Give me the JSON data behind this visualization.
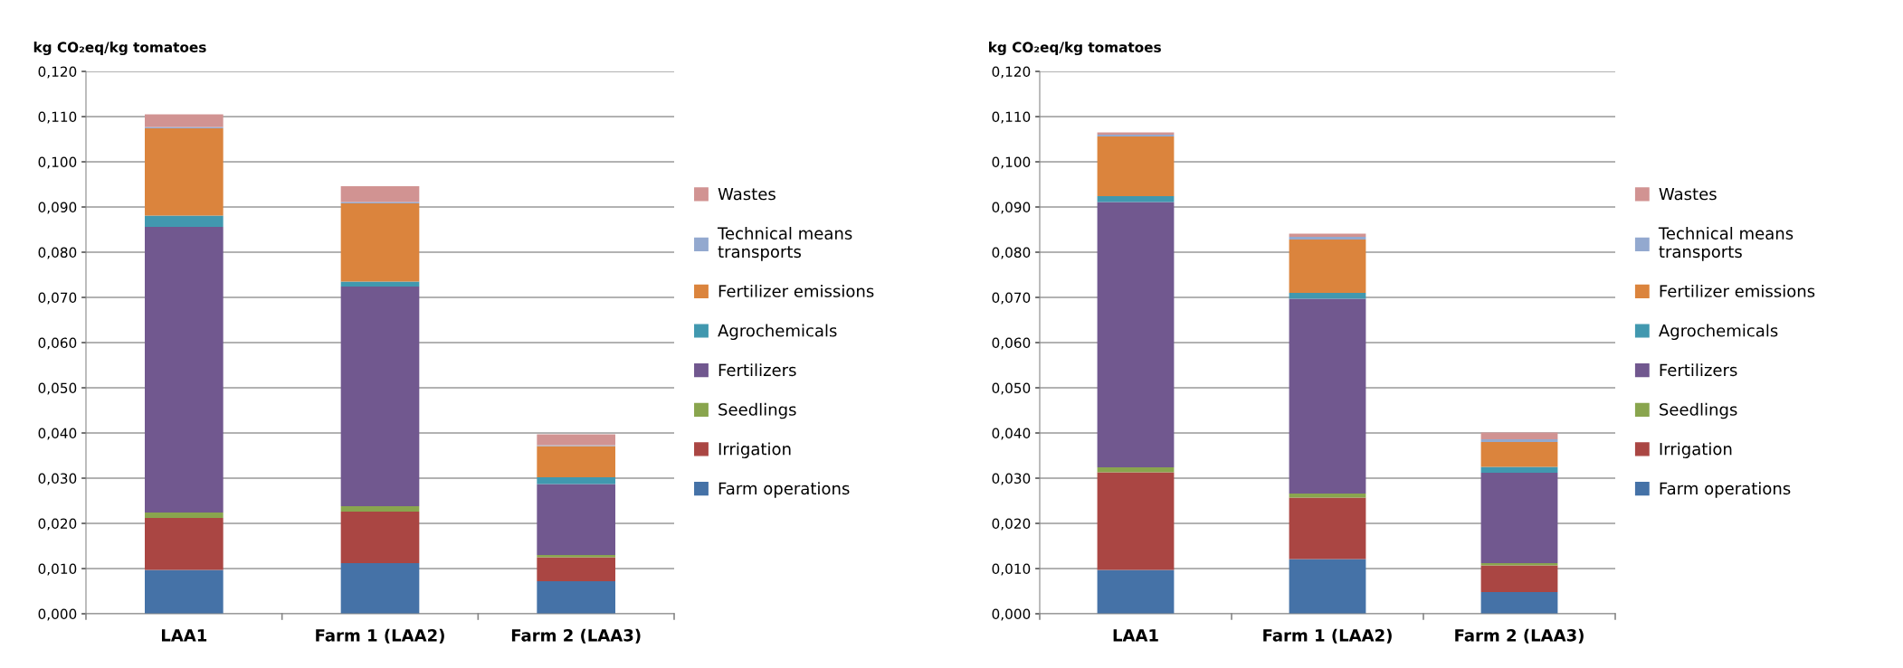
{
  "chart_data": [
    {
      "type": "bar",
      "stacked": true,
      "ylabel": "kg CO₂eq/kg tomatoes",
      "categories": [
        "LAA1",
        "Farm 1 (LAA2)",
        "Farm 2 (LAA3)"
      ],
      "ylim": [
        0,
        0.12
      ],
      "yticks": [
        {
          "value": 0,
          "label": "0,000"
        },
        {
          "value": 0.01,
          "label": "0,010"
        },
        {
          "value": 0.02,
          "label": "0,020"
        },
        {
          "value": 0.03,
          "label": "0,030"
        },
        {
          "value": 0.04,
          "label": "0,040"
        },
        {
          "value": 0.05,
          "label": "0,050"
        },
        {
          "value": 0.06,
          "label": "0,060"
        },
        {
          "value": 0.07,
          "label": "0,070"
        },
        {
          "value": 0.08,
          "label": "0,080"
        },
        {
          "value": 0.09,
          "label": "0,090"
        },
        {
          "value": 0.1,
          "label": "0,100"
        },
        {
          "value": 0.11,
          "label": "0,110"
        },
        {
          "value": 0.12,
          "label": "0,120"
        }
      ],
      "grid": "y",
      "legend": "right",
      "series": [
        {
          "name": "Farm operations",
          "color": "#4572a7",
          "values": [
            0.0097,
            0.0112,
            0.0072
          ]
        },
        {
          "name": "Irrigation",
          "color": "#aa4643",
          "values": [
            0.0115,
            0.0114,
            0.0053
          ]
        },
        {
          "name": "Seedlings",
          "color": "#89a54e",
          "values": [
            0.0012,
            0.0012,
            0.0005
          ]
        },
        {
          "name": "Fertilizers",
          "color": "#71588f",
          "values": [
            0.0632,
            0.0486,
            0.0157
          ]
        },
        {
          "name": "Agrochemicals",
          "color": "#4198af",
          "values": [
            0.0025,
            0.0011,
            0.0015
          ]
        },
        {
          "name": "Fertilizer emissions",
          "color": "#db843d",
          "values": [
            0.0193,
            0.0173,
            0.0069
          ]
        },
        {
          "name": "Technical means\ntransports",
          "color": "#93a9cf",
          "values": [
            0.0003,
            0.0003,
            0.0002
          ]
        },
        {
          "name": "Wastes",
          "color": "#d19392",
          "values": [
            0.0028,
            0.0035,
            0.0024
          ]
        }
      ]
    },
    {
      "type": "bar",
      "stacked": true,
      "ylabel": "kg CO₂eq/kg tomatoes",
      "categories": [
        "LAA1",
        "Farm 1 (LAA2)",
        "Farm 2 (LAA3)"
      ],
      "ylim": [
        0,
        0.12
      ],
      "yticks": [
        {
          "value": 0,
          "label": "0,000"
        },
        {
          "value": 0.01,
          "label": "0,010"
        },
        {
          "value": 0.02,
          "label": "0,020"
        },
        {
          "value": 0.03,
          "label": "0,030"
        },
        {
          "value": 0.04,
          "label": "0,040"
        },
        {
          "value": 0.05,
          "label": "0,050"
        },
        {
          "value": 0.06,
          "label": "0,060"
        },
        {
          "value": 0.07,
          "label": "0,070"
        },
        {
          "value": 0.08,
          "label": "0,080"
        },
        {
          "value": 0.09,
          "label": "0,090"
        },
        {
          "value": 0.1,
          "label": "0,100"
        },
        {
          "value": 0.11,
          "label": "0,110"
        },
        {
          "value": 0.12,
          "label": "0,120"
        }
      ],
      "grid": "y",
      "legend": "right",
      "series": [
        {
          "name": "Farm operations",
          "color": "#4572a7",
          "values": [
            0.0097,
            0.0121,
            0.0048
          ]
        },
        {
          "name": "Irrigation",
          "color": "#aa4643",
          "values": [
            0.0216,
            0.0136,
            0.0059
          ]
        },
        {
          "name": "Seedlings",
          "color": "#89a54e",
          "values": [
            0.0011,
            0.0009,
            0.0005
          ]
        },
        {
          "name": "Fertilizers",
          "color": "#71588f",
          "values": [
            0.0587,
            0.0431,
            0.02
          ]
        },
        {
          "name": "Agrochemicals",
          "color": "#4198af",
          "values": [
            0.0013,
            0.0013,
            0.0013
          ]
        },
        {
          "name": "Fertilizer emissions",
          "color": "#db843d",
          "values": [
            0.0132,
            0.0118,
            0.0055
          ]
        },
        {
          "name": "Technical means\ntransports",
          "color": "#93a9cf",
          "values": [
            0.0004,
            0.0006,
            0.0006
          ]
        },
        {
          "name": "Wastes",
          "color": "#d19392",
          "values": [
            0.0005,
            0.0007,
            0.0015
          ]
        }
      ]
    }
  ]
}
